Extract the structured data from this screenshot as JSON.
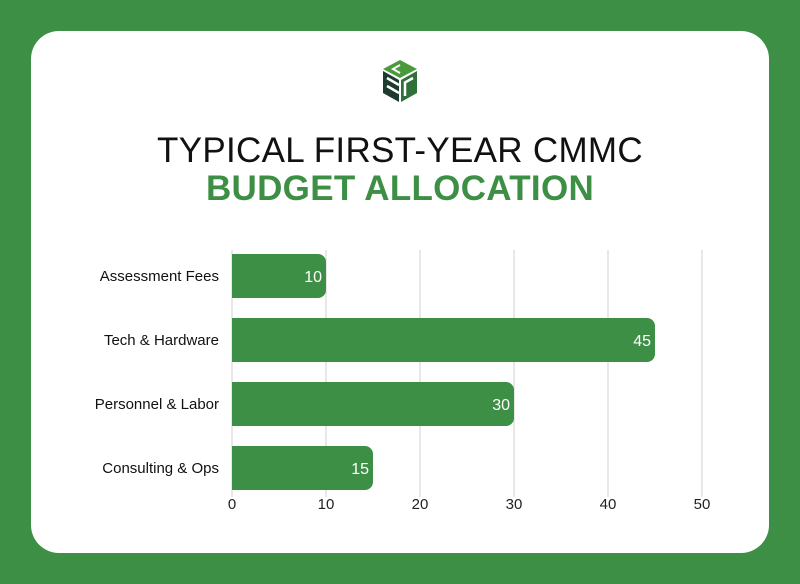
{
  "title_line1": "TYPICAL FIRST-YEAR CMMC",
  "title_line2": "BUDGET ALLOCATION",
  "colors": {
    "page_background": "#3d8f46",
    "card": "#ffffff",
    "bar": "#3d8f46",
    "title_accent": "#3d8f46",
    "grid": "#d0d0d0",
    "logo_green": "#4a9a3c",
    "logo_dark": "#1d3b2e"
  },
  "logo": {
    "icon": "cube-logo-icon"
  },
  "chart_data": {
    "type": "bar",
    "orientation": "horizontal",
    "categories": [
      "Assessment Fees",
      "Tech & Hardware",
      "Personnel & Labor",
      "Consulting & Ops"
    ],
    "values": [
      10,
      45,
      30,
      15
    ],
    "data_labels": [
      "10",
      "45",
      "30",
      "15"
    ],
    "x_ticks": [
      0,
      10,
      20,
      30,
      40,
      50
    ],
    "x_tick_labels": [
      "0",
      "10",
      "20",
      "30",
      "40",
      "50"
    ],
    "xlim": [
      0,
      50
    ],
    "grid": "vertical",
    "legend": "none"
  }
}
